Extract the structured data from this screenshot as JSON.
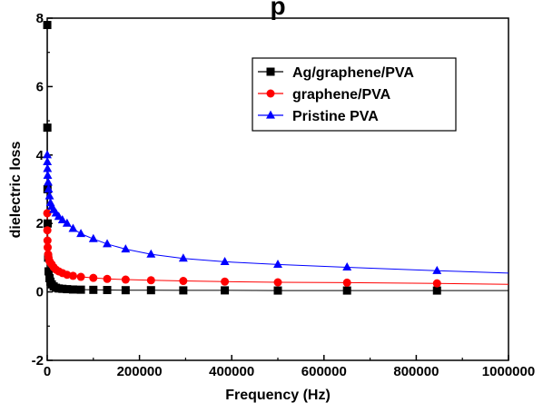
{
  "chart_data": {
    "type": "scatter",
    "title": "p",
    "xlabel": "Frequency (Hz)",
    "ylabel": "dielectric loss",
    "xlim": [
      0,
      1000000
    ],
    "ylim": [
      -2,
      8
    ],
    "xticks": [
      0,
      200000,
      400000,
      600000,
      800000,
      1000000
    ],
    "yticks": [
      -2,
      0,
      2,
      4,
      6,
      8
    ],
    "xtick_labels": [
      "0",
      "200000",
      "400000",
      "600000",
      "800000",
      "1000000"
    ],
    "ytick_labels": [
      "-2",
      "0",
      "2",
      "4",
      "6",
      "8"
    ],
    "grid": false,
    "legend_position": "top-right",
    "series": [
      {
        "name": "Ag/graphene/PVA",
        "color": "#000000",
        "marker": "square",
        "x": [
          100,
          300,
          600,
          1000,
          2000,
          3000,
          5000,
          7000,
          10000,
          14000,
          19000,
          25000,
          33000,
          43000,
          56000,
          73000,
          100000,
          130000,
          170000,
          225000,
          295000,
          385000,
          500000,
          650000,
          845000
        ],
        "y": [
          7.8,
          4.8,
          3.0,
          2.0,
          1.0,
          0.6,
          0.4,
          0.3,
          0.22,
          0.16,
          0.12,
          0.1,
          0.09,
          0.08,
          0.07,
          0.065,
          0.06,
          0.055,
          0.05,
          0.05,
          0.045,
          0.045,
          0.04,
          0.04,
          0.04
        ]
      },
      {
        "name": "graphene/PVA",
        "color": "#ff0000",
        "marker": "circle",
        "x": [
          100,
          300,
          600,
          1000,
          2000,
          3000,
          5000,
          7000,
          10000,
          14000,
          19000,
          25000,
          33000,
          43000,
          56000,
          73000,
          100000,
          130000,
          170000,
          225000,
          295000,
          385000,
          500000,
          650000,
          845000
        ],
        "y": [
          2.3,
          1.8,
          1.5,
          1.3,
          1.1,
          1.0,
          0.9,
          0.85,
          0.8,
          0.72,
          0.65,
          0.6,
          0.55,
          0.5,
          0.47,
          0.44,
          0.41,
          0.38,
          0.36,
          0.34,
          0.32,
          0.3,
          0.28,
          0.27,
          0.25
        ]
      },
      {
        "name": "Pristine PVA",
        "color": "#0000ff",
        "marker": "triangle",
        "x": [
          100,
          300,
          600,
          1000,
          2000,
          3000,
          5000,
          7000,
          10000,
          14000,
          19000,
          25000,
          33000,
          43000,
          56000,
          73000,
          100000,
          130000,
          170000,
          225000,
          295000,
          385000,
          500000,
          650000,
          845000
        ],
        "y": [
          4.0,
          3.8,
          3.6,
          3.4,
          3.2,
          3.0,
          2.8,
          2.6,
          2.5,
          2.4,
          2.3,
          2.2,
          2.1,
          2.0,
          1.85,
          1.7,
          1.55,
          1.4,
          1.25,
          1.1,
          0.98,
          0.88,
          0.8,
          0.72,
          0.62
        ]
      }
    ],
    "fit_lines": [
      {
        "series": "Ag/graphene/PVA",
        "y_end": 0.04
      },
      {
        "series": "graphene/PVA",
        "y_end": 0.22
      },
      {
        "series": "Pristine PVA",
        "y_end": 0.55
      }
    ]
  }
}
